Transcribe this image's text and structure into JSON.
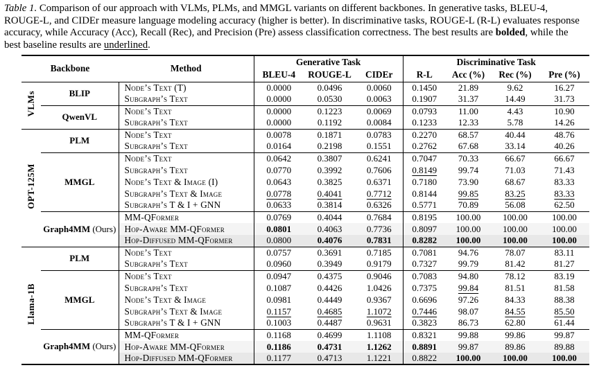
{
  "caption": {
    "label": "Table 1.",
    "body1": " Comparison of our approach with VLMs, PLMs, and MMGL variants on different backbones. In generative tasks, BLEU-4, ROUGE-L, and CIDEr measure language modeling accuracy (higher is better). In discriminative tasks, ROUGE-L (R-L) evaluates response accuracy, while Accuracy (Acc), Recall (Rec), and Precision (Pre) assess classification correctness. The best results are ",
    "bold_word": "bolded",
    "body2": ", while the best baseline results are ",
    "underline_word": "underlined",
    "body3": "."
  },
  "header": {
    "backbone": "Backbone",
    "method": "Method",
    "generative": "Generative Task",
    "discriminative": "Discriminative Task",
    "gen_cols": [
      "BLEU-4",
      "ROUGE-L",
      "CIDEr"
    ],
    "disc_cols": [
      "R-L",
      "Acc (%)",
      "Rec (%)",
      "Pre (%)"
    ]
  },
  "table": {
    "sections": [
      {
        "label": "VLMs",
        "backbones": [
          {
            "name": "BLIP",
            "suffix": "",
            "rows": [
              {
                "method": "Node’s Text (T)",
                "values": [
                  "0.0000",
                  "0.0496",
                  "0.0060",
                  "0.1450",
                  "21.89",
                  "9.62",
                  "16.27"
                ],
                "bold": [],
                "under": [],
                "shade": 0
              },
              {
                "method": "Subgraph’s Text",
                "values": [
                  "0.0000",
                  "0.0530",
                  "0.0063",
                  "0.1907",
                  "31.37",
                  "14.49",
                  "31.73"
                ],
                "bold": [],
                "under": [],
                "shade": 0
              }
            ]
          },
          {
            "name": "QwenVL",
            "suffix": "",
            "rows": [
              {
                "method": "Node’s Text",
                "values": [
                  "0.0000",
                  "0.1223",
                  "0.0069",
                  "0.0793",
                  "11.00",
                  "4.43",
                  "10.90"
                ],
                "bold": [],
                "under": [],
                "shade": 0
              },
              {
                "method": "Subgraph’s Text",
                "values": [
                  "0.0000",
                  "0.1192",
                  "0.0084",
                  "0.1233",
                  "12.33",
                  "5.78",
                  "14.26"
                ],
                "bold": [],
                "under": [],
                "shade": 0
              }
            ]
          }
        ]
      },
      {
        "label": "OPT-125M",
        "backbones": [
          {
            "name": "PLM",
            "suffix": "",
            "rows": [
              {
                "method": "Node’s Text",
                "values": [
                  "0.0078",
                  "0.1871",
                  "0.0783",
                  "0.2270",
                  "68.57",
                  "40.44",
                  "48.76"
                ],
                "bold": [],
                "under": [],
                "shade": 0
              },
              {
                "method": "Subgraph’s Text",
                "values": [
                  "0.0164",
                  "0.2198",
                  "0.1551",
                  "0.2762",
                  "67.68",
                  "33.14",
                  "40.26"
                ],
                "bold": [],
                "under": [],
                "shade": 0
              }
            ]
          },
          {
            "name": "MMGL",
            "suffix": "",
            "rows": [
              {
                "method": "Node’s Text",
                "values": [
                  "0.0642",
                  "0.3807",
                  "0.6241",
                  "0.7047",
                  "70.33",
                  "66.67",
                  "66.67"
                ],
                "bold": [],
                "under": [],
                "shade": 0
              },
              {
                "method": "Subgraph’s Text",
                "values": [
                  "0.0770",
                  "0.3992",
                  "0.7606",
                  "0.8149",
                  "99.74",
                  "71.03",
                  "71.43"
                ],
                "bold": [],
                "under": [
                  3
                ],
                "shade": 0
              },
              {
                "method": "Node’s Text & Image (I)",
                "values": [
                  "0.0643",
                  "0.3825",
                  "0.6371",
                  "0.7180",
                  "73.90",
                  "68.67",
                  "83.33"
                ],
                "bold": [],
                "under": [],
                "shade": 0
              },
              {
                "method": "Subgraph’s Text & Image",
                "values": [
                  "0.0778",
                  "0.4041",
                  "0.7712",
                  "0.8144",
                  "99.85",
                  "83.25",
                  "83.33"
                ],
                "bold": [],
                "under": [
                  0,
                  1,
                  2,
                  4,
                  5,
                  6
                ],
                "shade": 0
              },
              {
                "method": "Subgraph’s T & I + GNN",
                "values": [
                  "0.0633",
                  "0.3814",
                  "0.6326",
                  "0.5771",
                  "70.89",
                  "56.08",
                  "62.50"
                ],
                "bold": [],
                "under": [],
                "shade": 0
              }
            ]
          },
          {
            "name": "Graph4MM",
            "suffix": " (Ours)",
            "rows": [
              {
                "method": "MM-QFormer",
                "values": [
                  "0.0769",
                  "0.4044",
                  "0.7684",
                  "0.8195",
                  "100.00",
                  "100.00",
                  "100.00"
                ],
                "bold": [],
                "under": [],
                "shade": 0
              },
              {
                "method": "Hop-Aware MM-QFormer",
                "values": [
                  "0.0801",
                  "0.4063",
                  "0.7736",
                  "0.8097",
                  "100.00",
                  "100.00",
                  "100.00"
                ],
                "bold": [
                  0
                ],
                "under": [],
                "shade": 1
              },
              {
                "method": "Hop-Diffused MM-QFormer",
                "values": [
                  "0.0800",
                  "0.4076",
                  "0.7831",
                  "0.8282",
                  "100.00",
                  "100.00",
                  "100.00"
                ],
                "bold": [
                  1,
                  2,
                  3,
                  4,
                  5,
                  6
                ],
                "shade": 2,
                "under": []
              }
            ]
          }
        ]
      },
      {
        "label": "Llama-1B",
        "backbones": [
          {
            "name": "PLM",
            "suffix": "",
            "rows": [
              {
                "method": "Node’s Text",
                "values": [
                  "0.0757",
                  "0.3691",
                  "0.7185",
                  "0.7081",
                  "94.76",
                  "78.07",
                  "83.11"
                ],
                "bold": [],
                "under": [],
                "shade": 0
              },
              {
                "method": "Subgraph’s Text",
                "values": [
                  "0.0960",
                  "0.3949",
                  "0.9179",
                  "0.7327",
                  "99.79",
                  "81.42",
                  "81.27"
                ],
                "bold": [],
                "under": [],
                "shade": 0
              }
            ]
          },
          {
            "name": "MMGL",
            "suffix": "",
            "rows": [
              {
                "method": "Node’s Text",
                "values": [
                  "0.0947",
                  "0.4375",
                  "0.9046",
                  "0.7083",
                  "94.80",
                  "78.12",
                  "83.19"
                ],
                "bold": [],
                "under": [],
                "shade": 0
              },
              {
                "method": "Subgraph’s Text",
                "values": [
                  "0.1087",
                  "0.4426",
                  "1.0426",
                  "0.7375",
                  "99.84",
                  "81.51",
                  "81.58"
                ],
                "bold": [],
                "under": [
                  4
                ],
                "shade": 0
              },
              {
                "method": "Node’s Text & Image",
                "values": [
                  "0.0981",
                  "0.4449",
                  "0.9367",
                  "0.6696",
                  "97.26",
                  "84.33",
                  "88.38"
                ],
                "bold": [],
                "under": [],
                "shade": 0
              },
              {
                "method": "Subgraph’s Text & Image",
                "values": [
                  "0.1157",
                  "0.4685",
                  "1.1072",
                  "0.7446",
                  "98.07",
                  "84.55",
                  "85.50"
                ],
                "bold": [],
                "under": [
                  0,
                  1,
                  2,
                  3,
                  5,
                  6
                ],
                "shade": 0
              },
              {
                "method": "Subgraph’s T & I + GNN",
                "values": [
                  "0.1003",
                  "0.4487",
                  "0.9631",
                  "0.3823",
                  "86.73",
                  "62.80",
                  "61.44"
                ],
                "bold": [],
                "under": [],
                "shade": 0
              }
            ]
          },
          {
            "name": "Graph4MM",
            "suffix": " (Ours)",
            "rows": [
              {
                "method": "MM-QFormer",
                "values": [
                  "0.1168",
                  "0.4699",
                  "1.1108",
                  "0.8321",
                  "99.88",
                  "99.86",
                  "99.87"
                ],
                "bold": [],
                "under": [],
                "shade": 0
              },
              {
                "method": "Hop-Aware MM-QFormer",
                "values": [
                  "0.1186",
                  "0.4731",
                  "1.1262",
                  "0.8891",
                  "99.87",
                  "89.86",
                  "89.88"
                ],
                "bold": [
                  0,
                  1,
                  2,
                  3
                ],
                "under": [],
                "shade": 1
              },
              {
                "method": "Hop-Diffused MM-QFormer",
                "values": [
                  "0.1177",
                  "0.4713",
                  "1.1221",
                  "0.8822",
                  "100.00",
                  "100.00",
                  "100.00"
                ],
                "bold": [
                  4,
                  5,
                  6
                ],
                "under": [],
                "shade": 2
              }
            ]
          }
        ]
      }
    ]
  }
}
